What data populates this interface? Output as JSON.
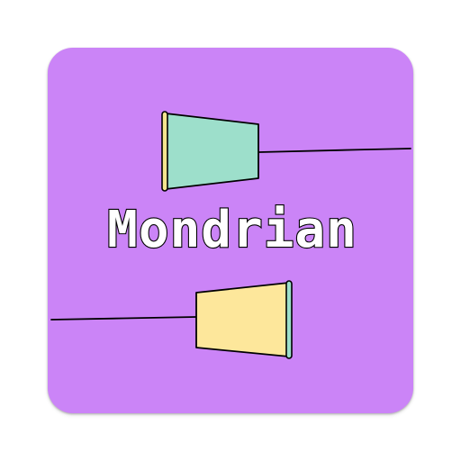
{
  "app": {
    "name": "Mondrian",
    "background_color": "#cb84f7"
  },
  "artwork": {
    "top_cup": {
      "icon": "cup-icon",
      "fill_color": "#9ddfcb",
      "rim_color": "#f5e58f"
    },
    "bottom_cup": {
      "icon": "cup-icon",
      "fill_color": "#fde79b",
      "rim_color": "#9ddfcb"
    },
    "string_color": "#000000"
  }
}
